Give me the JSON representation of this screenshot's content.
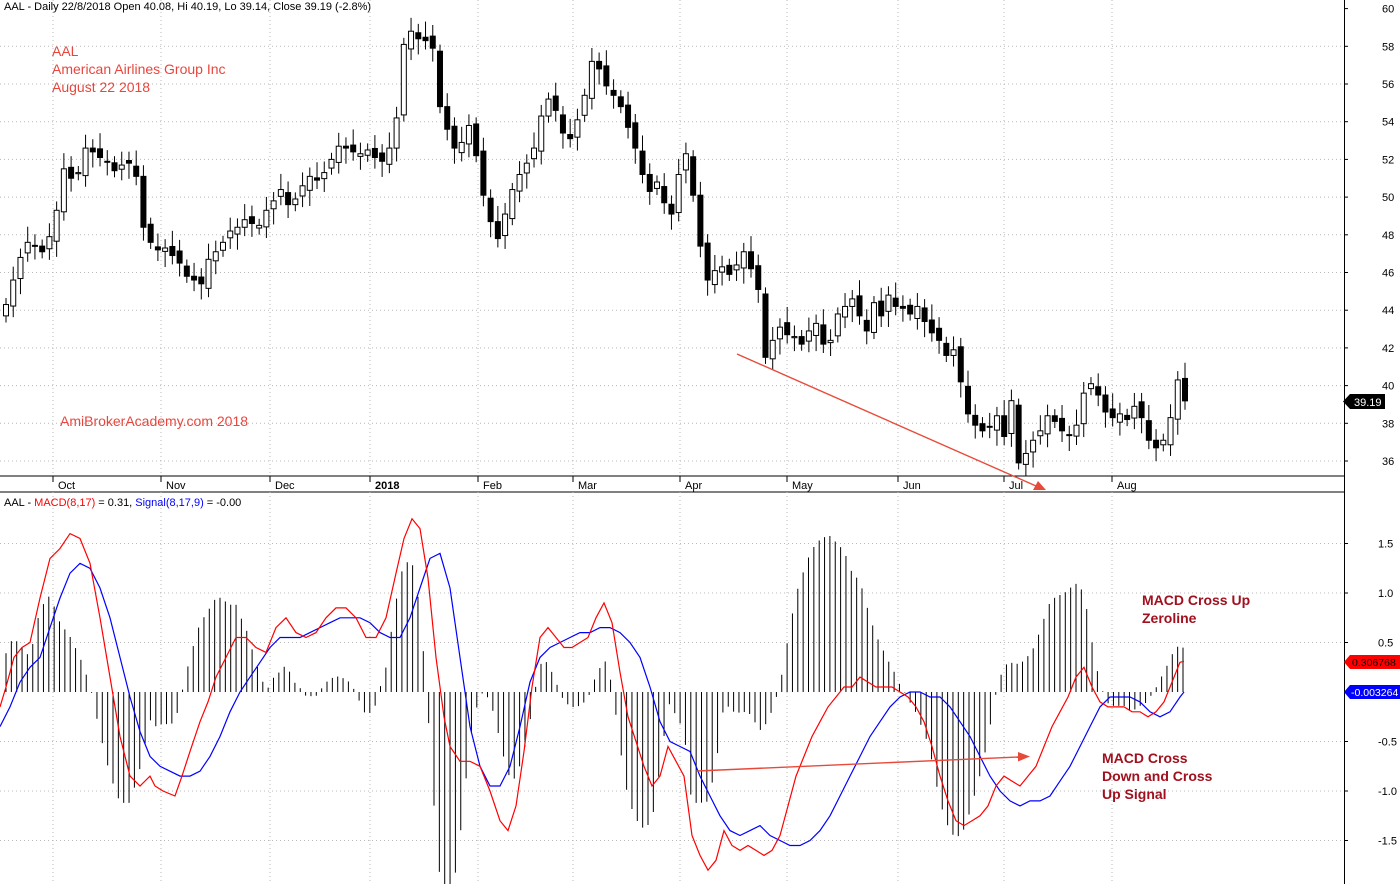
{
  "price_panel": {
    "header": "AAL - Daily 22/8/2018 Open 40.08, Hi 40.19, Lo 39.14, Close 39.19 (-2.8%)",
    "last_price_label": "39.19",
    "last_price": 39.19
  },
  "annotations": {
    "ticker": "AAL",
    "company": "American Airlines Group Inc",
    "date": "August 22 2018",
    "watermark": "AmiBrokerAcademy.com  2018",
    "macd_zero_line": [
      "MACD Cross Up",
      "Zeroline"
    ],
    "macd_cross": [
      "MACD Cross",
      "Down and Cross",
      "Up Signal"
    ]
  },
  "macd_panel": {
    "header_prefix": "AAL - ",
    "macd_label": "MACD(8,17)",
    "macd_value": "= 0.31,",
    "signal_label": "Signal(8,17,9)",
    "signal_value": "= -0.00",
    "macd_badge": "0.306768",
    "signal_badge": "-0.003264"
  },
  "colors": {
    "macd": "#ff0000",
    "signal": "#0000ff",
    "annotation_red": "#e8463c",
    "annotation_dark_red": "#a0101e",
    "candle": "#000000"
  },
  "chart_data": [
    {
      "type": "candlestick",
      "title": "AAL - Daily 22/8/2018",
      "x_ticks": [
        "Oct",
        "Nov",
        "Dec",
        "2018",
        "Feb",
        "Mar",
        "Apr",
        "May",
        "Jun",
        "Jul",
        "Aug"
      ],
      "y_ticks": [
        36,
        38,
        40,
        42,
        44,
        46,
        48,
        50,
        52,
        54,
        56,
        58,
        60
      ],
      "ylim": [
        35,
        60.3
      ],
      "closes": [
        44.3,
        45.6,
        46.8,
        47.6,
        47.4,
        47.1,
        47.9,
        49.3,
        51.5,
        51.0,
        51.3,
        52.6,
        52.4,
        52.1,
        51.9,
        51.4,
        51.7,
        51.8,
        51.1,
        48.4,
        47.6,
        47.2,
        47.3,
        46.9,
        46.5,
        45.8,
        45.6,
        45.4,
        46.7,
        47.1,
        47.6,
        48.2,
        48.4,
        48.8,
        48.6,
        48.5,
        49.3,
        49.8,
        50.4,
        49.6,
        49.9,
        50.6,
        51.1,
        50.9,
        51.3,
        52.0,
        52.7,
        52.6,
        52.4,
        52.3,
        52.5,
        52.1,
        51.9,
        52.6,
        54.2,
        58.1,
        58.8,
        58.4,
        58.3,
        57.9,
        54.8,
        53.6,
        52.6,
        52.9,
        53.8,
        52.2,
        50.1,
        48.7,
        47.8,
        49.1,
        50.4,
        51.2,
        51.8,
        52.6,
        54.3,
        55.2,
        54.6,
        53.4,
        53.1,
        54.1,
        55.4,
        57.2,
        56.8,
        55.9,
        55.4,
        54.8,
        53.7,
        52.6,
        51.2,
        50.3,
        50.8,
        49.7,
        49.1,
        51.2,
        52.3,
        50.1,
        47.4,
        45.6,
        46.1,
        46.3,
        45.9,
        46.4,
        47.1,
        46.2,
        45.1,
        41.5,
        42.4,
        43.1,
        42.7,
        42.6,
        42.2,
        42.9,
        43.3,
        42.2,
        42.4,
        43.8,
        44.2,
        44.6,
        43.7,
        42.9,
        44.4,
        43.7,
        44.8,
        44.2,
        44.1,
        43.8,
        44.2,
        43.4,
        42.8,
        42.4,
        41.6,
        41.9,
        40.2,
        38.5,
        37.9,
        37.6,
        37.8,
        38.4,
        37.3,
        39.2,
        35.9,
        36.4,
        37.1,
        37.6,
        38.4,
        38.1,
        37.6,
        37.4,
        37.9,
        39.6,
        40.1,
        39.5,
        38.6,
        38.3,
        38.5,
        38.2,
        38.9,
        38.3,
        37.1,
        36.7,
        37.1,
        38.3,
        40.3,
        39.19
      ],
      "last": 39.19
    },
    {
      "type": "line",
      "title": "MACD(8,17) / Signal(8,17,9)",
      "y_ticks": [
        1.5,
        1.0,
        0.5,
        -0.5,
        -1.0,
        -1.5
      ],
      "ylim": [
        -1.9,
        1.9
      ],
      "series": [
        {
          "name": "MACD(8,17)",
          "color": "#ff0000",
          "x": [
            0,
            6,
            14,
            22,
            30,
            40,
            50,
            60,
            70,
            80,
            90,
            100,
            110,
            120,
            130,
            140,
            150,
            155,
            163,
            175,
            182,
            190,
            200,
            208,
            216,
            226,
            236,
            246,
            256,
            266,
            276,
            286,
            296,
            306,
            316,
            326,
            336,
            346,
            356,
            366,
            376,
            386,
            396,
            404,
            412,
            420,
            428,
            436,
            444,
            450,
            460,
            470,
            480,
            490,
            500,
            508,
            516,
            524,
            532,
            540,
            548,
            556,
            564,
            572,
            580,
            588,
            596,
            604,
            612,
            620,
            628,
            636,
            644,
            652,
            660,
            668,
            676,
            684,
            692,
            700,
            708,
            716,
            724,
            732,
            740,
            748,
            756,
            764,
            772,
            780,
            788,
            796,
            804,
            812,
            820,
            828,
            836,
            844,
            852,
            860,
            868,
            876,
            884,
            892,
            900,
            908,
            916,
            924,
            932,
            940,
            948,
            956,
            964,
            972,
            980,
            988,
            996,
            1004,
            1012,
            1020,
            1028,
            1036,
            1044,
            1052,
            1060,
            1068,
            1076,
            1084,
            1092,
            1100,
            1108,
            1116,
            1124,
            1132,
            1140,
            1148,
            1156,
            1164,
            1172,
            1180,
            1184
          ],
          "values": [
            -0.15,
            0.05,
            0.35,
            0.45,
            0.5,
            0.95,
            1.35,
            1.45,
            1.6,
            1.55,
            1.3,
            0.75,
            0.15,
            -0.45,
            -0.85,
            -0.95,
            -0.85,
            -0.95,
            -1.0,
            -1.05,
            -0.85,
            -0.6,
            -0.3,
            -0.1,
            0.15,
            0.35,
            0.55,
            0.55,
            0.45,
            0.4,
            0.65,
            0.75,
            0.6,
            0.55,
            0.6,
            0.75,
            0.85,
            0.85,
            0.75,
            0.55,
            0.55,
            0.75,
            1.2,
            1.55,
            1.75,
            1.65,
            1.15,
            0.35,
            -0.25,
            -0.55,
            -0.7,
            -0.7,
            -0.75,
            -1.0,
            -1.3,
            -1.4,
            -1.15,
            -0.6,
            0.05,
            0.55,
            0.65,
            0.55,
            0.45,
            0.45,
            0.5,
            0.55,
            0.75,
            0.9,
            0.7,
            0.2,
            -0.25,
            -0.5,
            -0.75,
            -0.95,
            -0.85,
            -0.55,
            -0.7,
            -0.85,
            -1.45,
            -1.65,
            -1.8,
            -1.7,
            -1.4,
            -1.55,
            -1.6,
            -1.55,
            -1.6,
            -1.65,
            -1.6,
            -1.45,
            -1.15,
            -0.85,
            -0.65,
            -0.45,
            -0.3,
            -0.15,
            -0.05,
            0.05,
            0.05,
            0.15,
            0.1,
            0.05,
            0.05,
            0.05,
            0.0,
            -0.05,
            -0.15,
            -0.3,
            -0.55,
            -0.85,
            -1.1,
            -1.3,
            -1.35,
            -1.3,
            -1.25,
            -1.15,
            -0.95,
            -0.85,
            -0.9,
            -0.95,
            -0.85,
            -0.75,
            -0.55,
            -0.35,
            -0.2,
            -0.05,
            0.15,
            0.25,
            0.05,
            -0.1,
            -0.15,
            -0.15,
            -0.15,
            -0.2,
            -0.2,
            -0.25,
            -0.2,
            -0.1,
            0.1,
            0.3,
            0.31
          ]
        },
        {
          "name": "Signal(8,17,9)",
          "color": "#0000ff",
          "x": [
            0,
            10,
            20,
            30,
            40,
            50,
            60,
            70,
            80,
            90,
            100,
            110,
            120,
            130,
            140,
            150,
            160,
            170,
            180,
            190,
            200,
            210,
            220,
            230,
            240,
            250,
            260,
            270,
            280,
            290,
            300,
            310,
            320,
            330,
            340,
            350,
            360,
            370,
            380,
            390,
            400,
            410,
            420,
            430,
            440,
            450,
            460,
            470,
            480,
            490,
            500,
            510,
            520,
            530,
            540,
            550,
            560,
            570,
            580,
            590,
            600,
            610,
            620,
            630,
            640,
            650,
            660,
            670,
            680,
            690,
            700,
            710,
            720,
            730,
            740,
            750,
            760,
            770,
            780,
            790,
            800,
            810,
            820,
            830,
            840,
            850,
            860,
            870,
            880,
            890,
            900,
            910,
            920,
            930,
            940,
            950,
            960,
            970,
            980,
            990,
            1000,
            1010,
            1020,
            1030,
            1040,
            1050,
            1060,
            1070,
            1080,
            1090,
            1100,
            1110,
            1120,
            1130,
            1140,
            1150,
            1160,
            1170,
            1180,
            1184
          ],
          "values": [
            -0.35,
            -0.15,
            0.1,
            0.25,
            0.35,
            0.65,
            0.95,
            1.2,
            1.3,
            1.25,
            1.05,
            0.75,
            0.35,
            -0.05,
            -0.4,
            -0.65,
            -0.75,
            -0.8,
            -0.85,
            -0.85,
            -0.8,
            -0.65,
            -0.45,
            -0.2,
            0.0,
            0.15,
            0.3,
            0.45,
            0.55,
            0.55,
            0.55,
            0.6,
            0.65,
            0.7,
            0.75,
            0.75,
            0.75,
            0.7,
            0.6,
            0.55,
            0.55,
            0.75,
            1.05,
            1.35,
            1.4,
            1.05,
            0.35,
            -0.35,
            -0.75,
            -0.95,
            -0.95,
            -0.75,
            -0.35,
            0.1,
            0.35,
            0.45,
            0.5,
            0.55,
            0.6,
            0.6,
            0.65,
            0.65,
            0.6,
            0.5,
            0.35,
            0.05,
            -0.3,
            -0.5,
            -0.55,
            -0.6,
            -0.85,
            -1.05,
            -1.25,
            -1.4,
            -1.45,
            -1.4,
            -1.35,
            -1.45,
            -1.5,
            -1.55,
            -1.55,
            -1.5,
            -1.4,
            -1.25,
            -1.05,
            -0.85,
            -0.65,
            -0.45,
            -0.3,
            -0.15,
            -0.05,
            0.0,
            0.0,
            -0.05,
            -0.05,
            -0.15,
            -0.3,
            -0.45,
            -0.65,
            -0.85,
            -1.0,
            -1.1,
            -1.15,
            -1.1,
            -1.1,
            -1.05,
            -0.9,
            -0.75,
            -0.55,
            -0.35,
            -0.15,
            -0.05,
            -0.05,
            -0.05,
            -0.1,
            -0.2,
            -0.25,
            -0.2,
            -0.05,
            0.0
          ]
        }
      ]
    }
  ]
}
